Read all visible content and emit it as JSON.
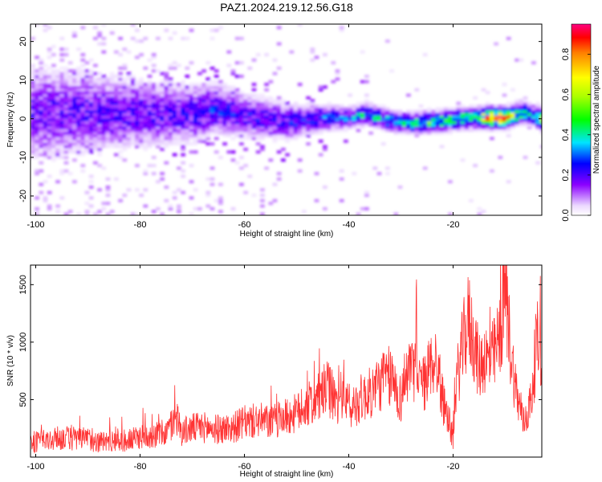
{
  "title": "PAZ1.2024.219.12.56.G18",
  "chart_data": [
    {
      "type": "heatmap",
      "title": "PAZ1.2024.219.12.56.G18",
      "xlabel": "Height of straight line (km)",
      "ylabel": "Frequency (Hz)",
      "xlim": [
        -101,
        -3
      ],
      "ylim": [
        -25,
        24.5
      ],
      "x_ticks": [
        -100,
        -80,
        -60,
        -40,
        -20
      ],
      "y_ticks": [
        -20,
        -10,
        0,
        10,
        20
      ],
      "colorbar": {
        "label": "Normalized spectral amplitude",
        "range": [
          0,
          0.95
        ],
        "ticks": [
          0.0,
          0.2,
          0.4,
          0.6,
          0.8
        ],
        "tick_labels": [
          "0.0",
          "0.2",
          "0.4",
          "0.6",
          "0.8"
        ]
      },
      "ridge_points": [
        {
          "x": -99,
          "y": 1,
          "v": 0.2
        },
        {
          "x": -90,
          "y": 1.5,
          "v": 0.22
        },
        {
          "x": -80,
          "y": 1,
          "v": 0.22
        },
        {
          "x": -70,
          "y": 1,
          "v": 0.24
        },
        {
          "x": -66,
          "y": 2.5,
          "v": 0.28
        },
        {
          "x": -60,
          "y": 0.5,
          "v": 0.24
        },
        {
          "x": -52,
          "y": -1,
          "v": 0.26
        },
        {
          "x": -45,
          "y": 0,
          "v": 0.3
        },
        {
          "x": -40,
          "y": 0,
          "v": 0.32
        },
        {
          "x": -37,
          "y": 1,
          "v": 0.45
        },
        {
          "x": -32,
          "y": -1,
          "v": 0.38
        },
        {
          "x": -28,
          "y": -1.5,
          "v": 0.42
        },
        {
          "x": -24,
          "y": -1,
          "v": 0.52
        },
        {
          "x": -20,
          "y": -0.5,
          "v": 0.5
        },
        {
          "x": -16,
          "y": 0,
          "v": 0.55
        },
        {
          "x": -13,
          "y": 0,
          "v": 0.88
        },
        {
          "x": -10,
          "y": 0,
          "v": 0.82
        },
        {
          "x": -7,
          "y": 1.5,
          "v": 0.5
        },
        {
          "x": -5,
          "y": 0.5,
          "v": 0.4
        },
        {
          "x": -3,
          "y": -0.5,
          "v": 0.85
        }
      ]
    },
    {
      "type": "line",
      "xlabel": "Height of straight line (km)",
      "ylabel": "SNR (10 * v/v)",
      "xlim": [
        -101,
        -3
      ],
      "ylim": [
        0,
        1670
      ],
      "x_ticks": [
        -100,
        -80,
        -60,
        -40,
        -20
      ],
      "y_ticks": [
        500,
        1000,
        1500
      ],
      "color": "#ff3333",
      "series": [
        {
          "x": [
            -101,
            -98,
            -95,
            -92,
            -90,
            -88,
            -85,
            -82,
            -80,
            -78,
            -75,
            -73,
            -72,
            -70,
            -68,
            -65,
            -62,
            -60,
            -57,
            -55,
            -52,
            -50,
            -48,
            -46,
            -45,
            -44,
            -42,
            -41,
            -40,
            -38,
            -36,
            -34,
            -32,
            -30,
            -29,
            -28,
            -27,
            -26,
            -25,
            -24,
            -23,
            -22,
            -21,
            -20,
            -19.5,
            -19,
            -18,
            -17,
            -16,
            -15,
            -14,
            -13,
            -12,
            -11,
            -10,
            -9.5,
            -9,
            -8,
            -7,
            -6.5,
            -5.5,
            -5,
            -4,
            -3
          ],
          "y": [
            130,
            140,
            170,
            150,
            160,
            130,
            150,
            140,
            180,
            190,
            210,
            350,
            220,
            250,
            260,
            240,
            260,
            300,
            320,
            300,
            350,
            380,
            450,
            500,
            560,
            600,
            450,
            620,
            400,
            500,
            550,
            650,
            700,
            500,
            750,
            700,
            850,
            600,
            700,
            850,
            800,
            500,
            350,
            150,
            600,
            750,
            1000,
            1200,
            1000,
            780,
            880,
            820,
            900,
            1050,
            1500,
            1200,
            950,
            600,
            380,
            300,
            420,
            500,
            1000,
            940
          ]
        }
      ]
    }
  ]
}
